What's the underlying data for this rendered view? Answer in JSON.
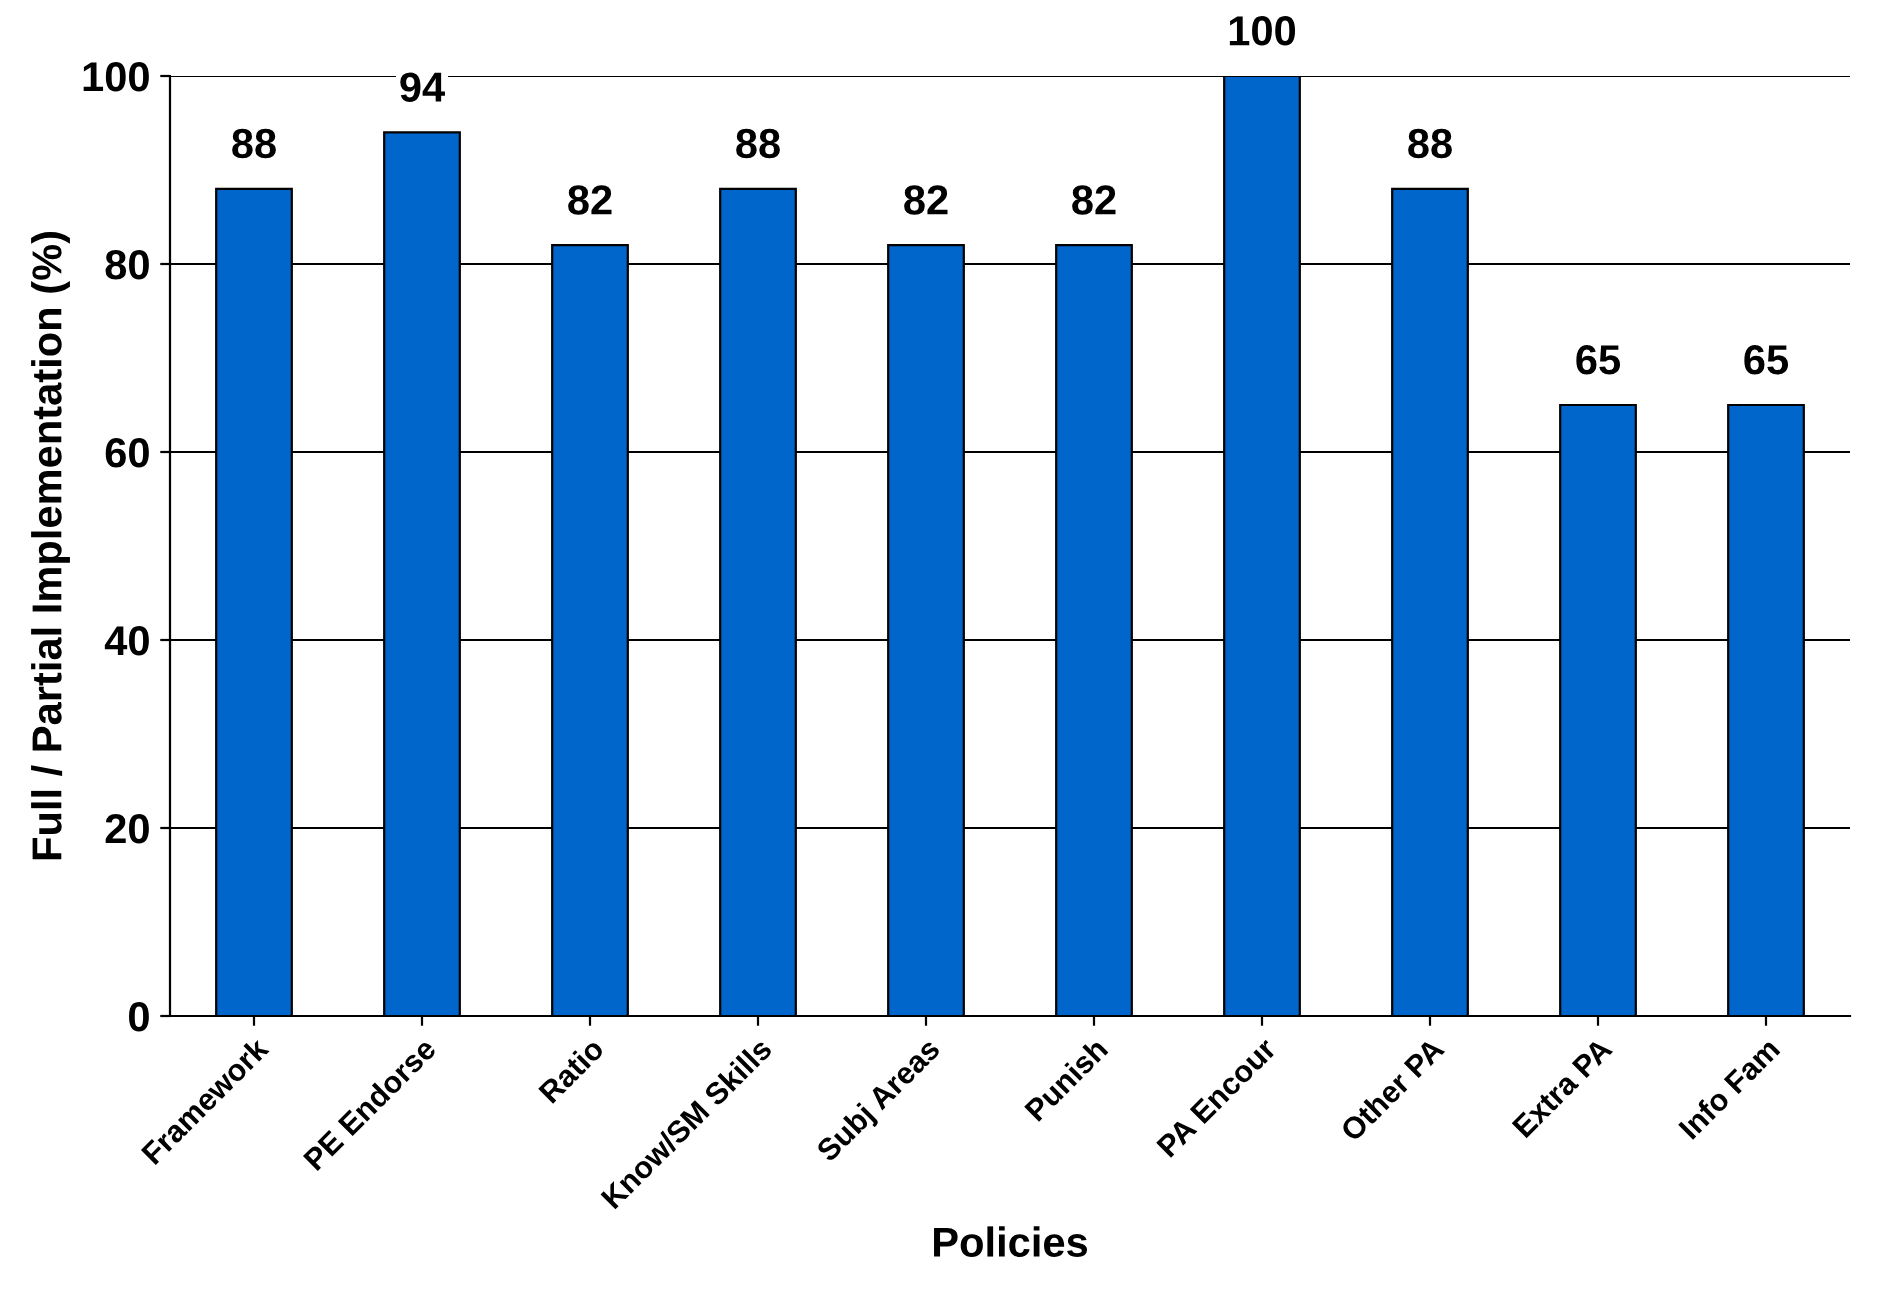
{
  "chart_data": {
    "type": "bar",
    "xlabel": "Policies",
    "ylabel": "Full / Partial Implementation (%)",
    "categories": [
      "Framework",
      "PE Endorse",
      "Ratio",
      "Know/SM Skills",
      "Subj Areas",
      "Punish",
      "PA Encour",
      "Other PA",
      "Extra PA",
      "Info Fam"
    ],
    "values": [
      88,
      94,
      82,
      88,
      82,
      82,
      100,
      88,
      65,
      65
    ],
    "color": "#0066cc",
    "ylim": [
      0,
      100
    ],
    "yticks": [
      0,
      20,
      40,
      60,
      80,
      100
    ],
    "grid": "y",
    "data_labels": true
  }
}
